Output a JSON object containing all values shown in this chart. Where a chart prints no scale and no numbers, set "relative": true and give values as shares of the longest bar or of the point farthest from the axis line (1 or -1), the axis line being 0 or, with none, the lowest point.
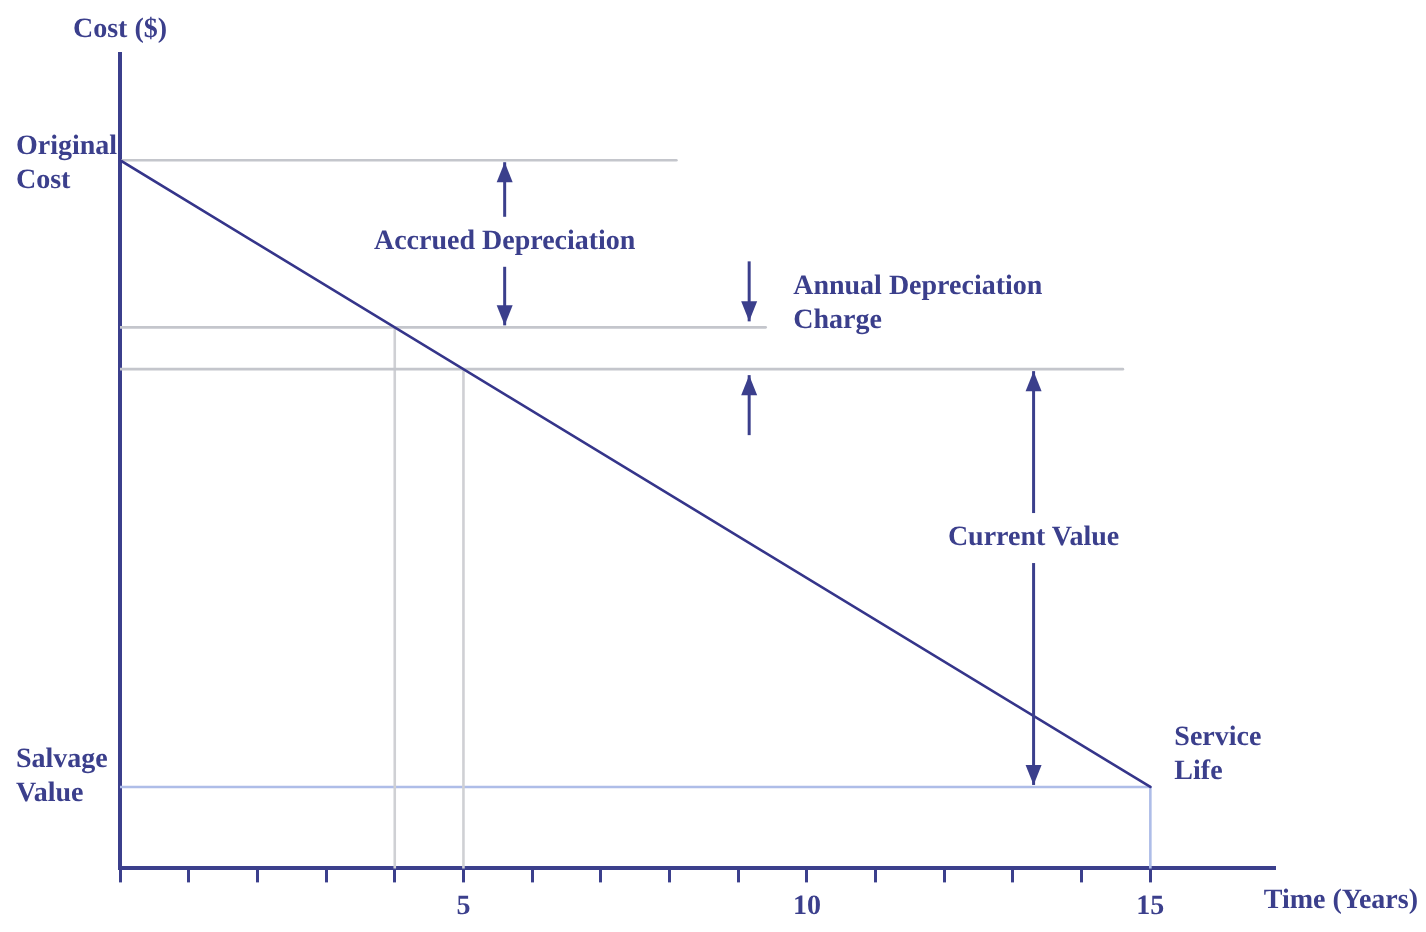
{
  "chart_data": {
    "type": "line",
    "relative": true,
    "xlabel": "Time (Years)",
    "ylabel": "Cost ($)",
    "xlim": [
      0,
      16.8
    ],
    "xticks": [
      {
        "value": 0,
        "label": null
      },
      {
        "value": 1,
        "label": null
      },
      {
        "value": 2,
        "label": null
      },
      {
        "value": 3,
        "label": null
      },
      {
        "value": 4,
        "label": null
      },
      5,
      {
        "value": 6,
        "label": null
      },
      {
        "value": 7,
        "label": null
      },
      {
        "value": 8,
        "label": null
      },
      {
        "value": 9,
        "label": null
      },
      10,
      {
        "value": 11,
        "label": null
      },
      {
        "value": 12,
        "label": null
      },
      {
        "value": 13,
        "label": null
      },
      {
        "value": 14,
        "label": null
      },
      15
    ],
    "marker": "none",
    "line_style": "solid",
    "grid": false,
    "legend": false,
    "series": [
      {
        "color": "#35358a",
        "x": [
          0,
          15
        ],
        "values": [
          1,
          0.115
        ]
      },
      {
        "color": "#c4c6cc",
        "x": [
          0,
          8.1
        ],
        "values": [
          1,
          1
        ]
      },
      {
        "color": "#c4c6cc",
        "x": [
          0,
          9.4
        ],
        "values": [
          0.764,
          0.764
        ]
      },
      {
        "color": "#c4c6cc",
        "x": [
          0,
          14.6
        ],
        "values": [
          0.705,
          0.705
        ]
      },
      {
        "color": "#cfd0d4",
        "x": [
          4,
          4
        ],
        "values": [
          0.764,
          0
        ]
      },
      {
        "color": "#cfd0d4",
        "x": [
          5,
          5
        ],
        "values": [
          0.705,
          0
        ]
      },
      {
        "color": "#aebde8",
        "x": [
          0,
          15
        ],
        "values": [
          0.115,
          0.115
        ]
      },
      {
        "color": "#aebde8",
        "x": [
          15,
          15
        ],
        "values": [
          0.115,
          0
        ]
      }
    ],
    "annotations": [
      "Original\nCost",
      "Salvage\nValue",
      "Accrued Depreciation",
      "Annual Depreciation\nCharge",
      "Current Value",
      "Service\nLife"
    ]
  }
}
